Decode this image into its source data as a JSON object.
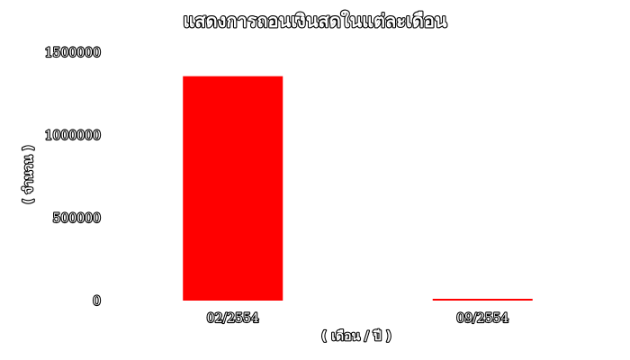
{
  "chart_data": {
    "type": "bar",
    "title": "แสดงการถอนเงินสดในแต่ละเดือน",
    "xlabel": "( เดือน / ปี )",
    "ylabel": "( จำนวน )",
    "categories": [
      "02/2554",
      "09/2554"
    ],
    "values": [
      1355000,
      10000
    ],
    "ylim": [
      0,
      1500000
    ],
    "yticks": [
      0,
      500000,
      1000000,
      1500000
    ],
    "bar_color": "#ff0000",
    "grid": false,
    "legend": false
  }
}
